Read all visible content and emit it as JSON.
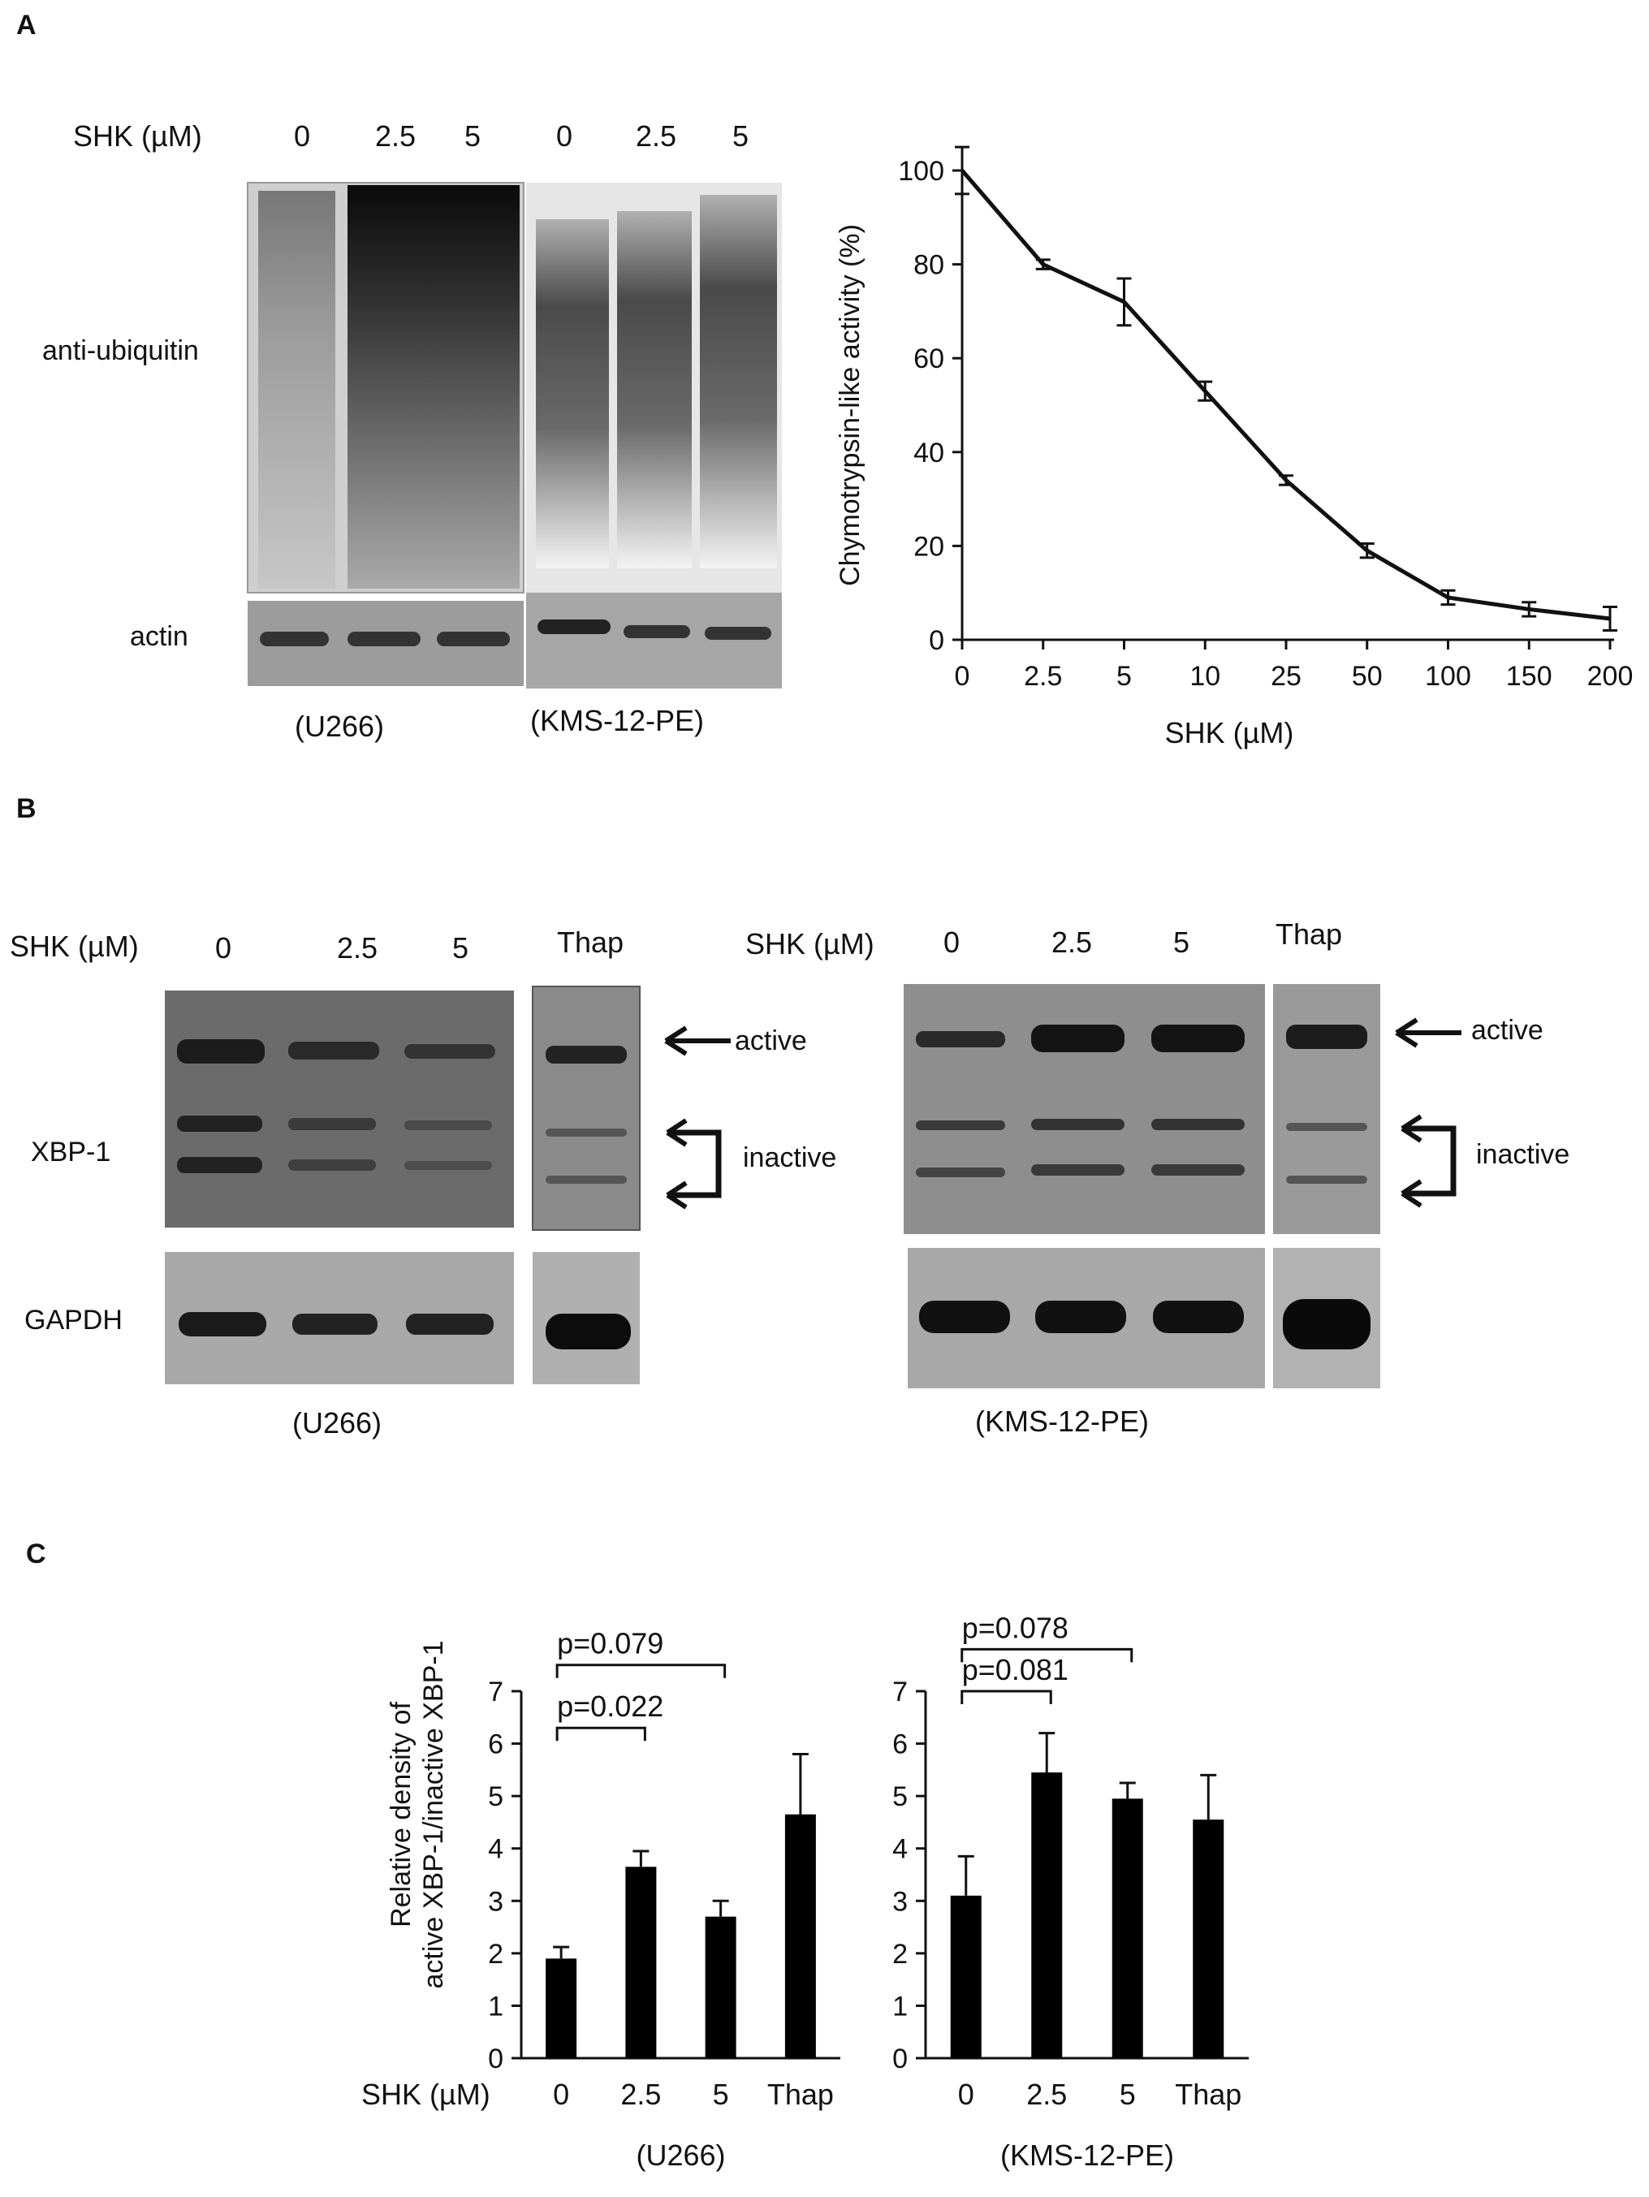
{
  "panels": {
    "a": {
      "letter": "A",
      "blot": {
        "shk_label": "SHK (µM)",
        "lanes_u266": [
          "0",
          "2.5",
          "5"
        ],
        "lanes_kms": [
          "0",
          "2.5",
          "5"
        ],
        "row_ubiquitin": "anti-ubiquitin",
        "row_actin": "actin",
        "cell_u266": "(U266)",
        "cell_kms": "(KMS-12-PE)"
      }
    },
    "b": {
      "letter": "B",
      "left": {
        "shk_label": "SHK (µM)",
        "lanes": [
          "0",
          "2.5",
          "5"
        ],
        "thap": "Thap",
        "row_xbp": "XBP-1",
        "row_gapdh": "GAPDH",
        "active": "active",
        "inactive": "inactive",
        "cell": "(U266)"
      },
      "right": {
        "shk_label": "SHK (µM)",
        "lanes": [
          "0",
          "2.5",
          "5"
        ],
        "thap": "Thap",
        "active": "active",
        "inactive": "inactive",
        "cell": "(KMS-12-PE)"
      }
    },
    "c": {
      "letter": "C",
      "ylabel_line1": "Relative density of",
      "ylabel_line2": "active XBP-1/inactive XBP-1",
      "shk_label": "SHK (µM)"
    }
  },
  "chart_data": [
    {
      "id": "chymotrypsin",
      "type": "line",
      "title": "",
      "xlabel": "SHK (µM)",
      "ylabel": "Chymotrypsin-like activity (%)",
      "x_categories": [
        "0",
        "2.5",
        "5",
        "10",
        "25",
        "50",
        "100",
        "150",
        "200"
      ],
      "y_ticks": [
        "0",
        "20",
        "40",
        "60",
        "80",
        "100"
      ],
      "ylim": [
        0,
        100
      ],
      "values": [
        100,
        80,
        72,
        53,
        34,
        19,
        9,
        6.5,
        4.5
      ],
      "errors": [
        5,
        1,
        5,
        2,
        1,
        1.5,
        1.5,
        1.5,
        2.5
      ],
      "grid": false
    },
    {
      "id": "xbp_u266",
      "type": "bar",
      "categories": [
        "0",
        "2.5",
        "5",
        "Thap"
      ],
      "values": [
        1.9,
        3.65,
        2.7,
        4.65
      ],
      "errors": [
        0.22,
        0.3,
        0.3,
        1.15
      ],
      "y_ticks": [
        "0",
        "1",
        "2",
        "3",
        "4",
        "5",
        "6",
        "7"
      ],
      "ylim": [
        0,
        7
      ],
      "group_label": "(U266)",
      "annotations": [
        {
          "text": "p=0.079",
          "from": 0,
          "to": 2,
          "level": 7.5
        },
        {
          "text": "p=0.022",
          "from": 0,
          "to": 1,
          "level": 6.3
        }
      ]
    },
    {
      "id": "xbp_kms",
      "type": "bar",
      "categories": [
        "0",
        "2.5",
        "5",
        "Thap"
      ],
      "values": [
        3.1,
        5.45,
        4.95,
        4.55
      ],
      "errors": [
        0.75,
        0.75,
        0.3,
        0.85
      ],
      "y_ticks": [
        "0",
        "1",
        "2",
        "3",
        "4",
        "5",
        "6",
        "7"
      ],
      "ylim": [
        0,
        7
      ],
      "group_label": "(KMS-12-PE)",
      "annotations": [
        {
          "text": "p=0.078",
          "from": 0,
          "to": 2,
          "level": 7.8
        },
        {
          "text": "p=0.081",
          "from": 0,
          "to": 1,
          "level": 7.0
        }
      ]
    }
  ]
}
